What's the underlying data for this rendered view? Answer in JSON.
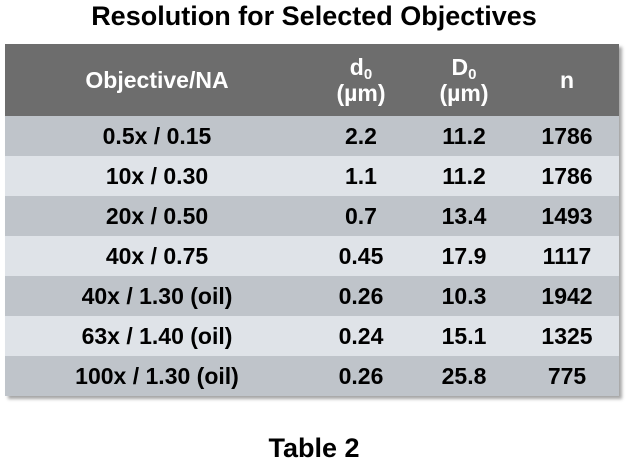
{
  "title": "Resolution for Selected Objectives",
  "caption": "Table 2",
  "table": {
    "headers": {
      "objective": "Objective/NA",
      "d0_symbol": "d",
      "d0_sub": "0",
      "d0_unit": "(µm)",
      "D0_symbol": "D",
      "D0_sub": "0",
      "D0_unit": "(µm)",
      "n": "n"
    },
    "rows": [
      {
        "objective": "0.5x / 0.15",
        "d0": "2.2",
        "D0": "11.2",
        "n": "1786"
      },
      {
        "objective": "10x / 0.30",
        "d0": "1.1",
        "D0": "11.2",
        "n": "1786"
      },
      {
        "objective": "20x / 0.50",
        "d0": "0.7",
        "D0": "13.4",
        "n": "1493"
      },
      {
        "objective": "40x / 0.75",
        "d0": "0.45",
        "D0": "17.9",
        "n": "1117"
      },
      {
        "objective": "40x / 1.30 (oil)",
        "d0": "0.26",
        "D0": "10.3",
        "n": "1942"
      },
      {
        "objective": "63x / 1.40 (oil)",
        "d0": "0.24",
        "D0": "15.1",
        "n": "1325"
      },
      {
        "objective": "100x / 1.30 (oil)",
        "d0": "0.26",
        "D0": "25.8",
        "n": "775"
      }
    ]
  },
  "colors": {
    "header_bg": "#6d6d6d",
    "row_dark": "#bfc4ca",
    "row_light": "#dfe3e8"
  }
}
